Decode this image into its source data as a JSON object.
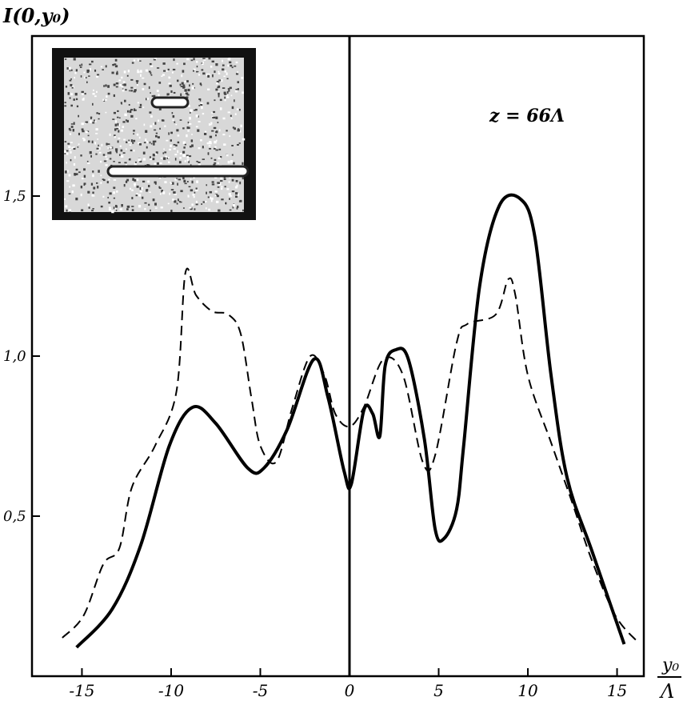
{
  "chart_data": {
    "type": "line",
    "title": "",
    "ylabel": "I(0,y₀)",
    "xlabel_num": "y₀",
    "xlabel_den": "Λ",
    "annotation": "z = 66Λ",
    "xlim": [
      -17.8,
      16.5
    ],
    "ylim": [
      0,
      2.0
    ],
    "xticks": [
      -15,
      -10,
      -5,
      0,
      5,
      10,
      15
    ],
    "xtick_labels": [
      "-15",
      "-10",
      "-5",
      "0",
      "5",
      "10",
      "15"
    ],
    "yticks": [
      0.5,
      1.0,
      1.5
    ],
    "ytick_labels": [
      "0,5",
      "1,0",
      "1,5"
    ],
    "grid": false,
    "inset": "photograph",
    "series": [
      {
        "style": "solid",
        "color": "#000000",
        "x": [
          -15.3,
          -13.3,
          -11.7,
          -10.1,
          -8.8,
          -7.5,
          -5.7,
          -4.8,
          -3.5,
          -2.0,
          -1.2,
          -0.3,
          0.1,
          0.8,
          1.3,
          1.7,
          2.0,
          2.6,
          3.3,
          4.2,
          4.8,
          5.3,
          6.0,
          6.4,
          7.3,
          8.4,
          9.6,
          10.4,
          11.3,
          12.2,
          13.6,
          15.4
        ],
        "y": [
          0.09,
          0.21,
          0.41,
          0.72,
          0.84,
          0.79,
          0.65,
          0.65,
          0.77,
          0.99,
          0.87,
          0.64,
          0.6,
          0.83,
          0.82,
          0.75,
          0.97,
          1.02,
          0.99,
          0.74,
          0.46,
          0.43,
          0.52,
          0.72,
          1.22,
          1.47,
          1.49,
          1.37,
          0.94,
          0.62,
          0.39,
          0.1
        ]
      },
      {
        "style": "dashed",
        "color": "#000000",
        "x": [
          -16.1,
          -14.9,
          -13.8,
          -12.9,
          -12.2,
          -10.9,
          -9.7,
          -9.2,
          -8.6,
          -7.7,
          -6.8,
          -6.1,
          -5.5,
          -5.0,
          -4.1,
          -3.2,
          -2.2,
          -1.4,
          -0.8,
          0,
          0.8,
          1.9,
          3.0,
          4.1,
          4.8,
          6.0,
          6.6,
          8.2,
          8.9,
          9.3,
          10.0,
          11.3,
          12.5,
          13.6,
          14.9,
          16.1
        ],
        "y": [
          0.12,
          0.19,
          0.35,
          0.4,
          0.59,
          0.72,
          0.89,
          1.26,
          1.19,
          1.14,
          1.13,
          1.07,
          0.87,
          0.72,
          0.67,
          0.84,
          1.0,
          0.94,
          0.82,
          0.78,
          0.84,
          0.99,
          0.94,
          0.67,
          0.69,
          1.04,
          1.1,
          1.13,
          1.24,
          1.19,
          0.94,
          0.73,
          0.54,
          0.36,
          0.19,
          0.11
        ]
      }
    ]
  }
}
